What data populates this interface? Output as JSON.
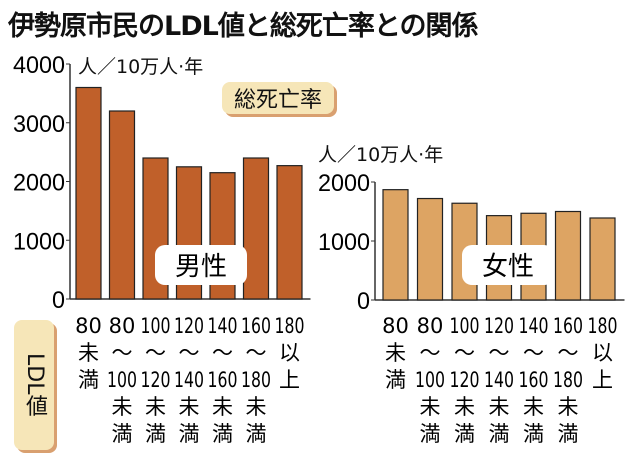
{
  "title": "伊勢原市民のLDL値と総死亡率との関係",
  "badge": "総死亡率",
  "ldl_label": "LDL値",
  "colors": {
    "male": "#c0602a",
    "female": "#dda463",
    "badge": "#f6e6b8"
  },
  "chart_data": [
    {
      "type": "bar",
      "title": "男性",
      "ylabel": "人／10万人·年",
      "xlabel": "LDL値",
      "categories": [
        "80未満",
        "80〜100未満",
        "100〜120未満",
        "120〜140未満",
        "140〜160未満",
        "160〜180未満",
        "180以上"
      ],
      "category_lines": [
        [
          "80",
          "未",
          "満"
        ],
        [
          "80",
          "〜",
          "100",
          "未",
          "満"
        ],
        [
          "100",
          "〜",
          "120",
          "未",
          "満"
        ],
        [
          "120",
          "〜",
          "140",
          "未",
          "満"
        ],
        [
          "140",
          "〜",
          "160",
          "未",
          "満"
        ],
        [
          "160",
          "〜",
          "180",
          "未",
          "満"
        ],
        [
          "180",
          "以",
          "上"
        ]
      ],
      "values": [
        3600,
        3200,
        2400,
        2250,
        2150,
        2400,
        2270
      ],
      "ylim": [
        0,
        4000
      ],
      "yticks": [
        "0",
        "1000",
        "2000",
        "3000",
        "4000"
      ]
    },
    {
      "type": "bar",
      "title": "女性",
      "ylabel": "人／10万人·年",
      "xlabel": "LDL値",
      "categories": [
        "80未満",
        "80〜100未満",
        "100〜120未満",
        "120〜140未満",
        "140〜160未満",
        "160〜180未満",
        "180以上"
      ],
      "category_lines": [
        [
          "80",
          "未",
          "満"
        ],
        [
          "80",
          "〜",
          "100",
          "未",
          "満"
        ],
        [
          "100",
          "〜",
          "120",
          "未",
          "満"
        ],
        [
          "120",
          "〜",
          "140",
          "未",
          "満"
        ],
        [
          "140",
          "〜",
          "160",
          "未",
          "満"
        ],
        [
          "160",
          "〜",
          "180",
          "未",
          "満"
        ],
        [
          "180",
          "以",
          "上"
        ]
      ],
      "values": [
        1870,
        1720,
        1640,
        1430,
        1470,
        1500,
        1390
      ],
      "ylim": [
        0,
        2000
      ],
      "yticks": [
        "0",
        "1000",
        "2000"
      ]
    }
  ]
}
